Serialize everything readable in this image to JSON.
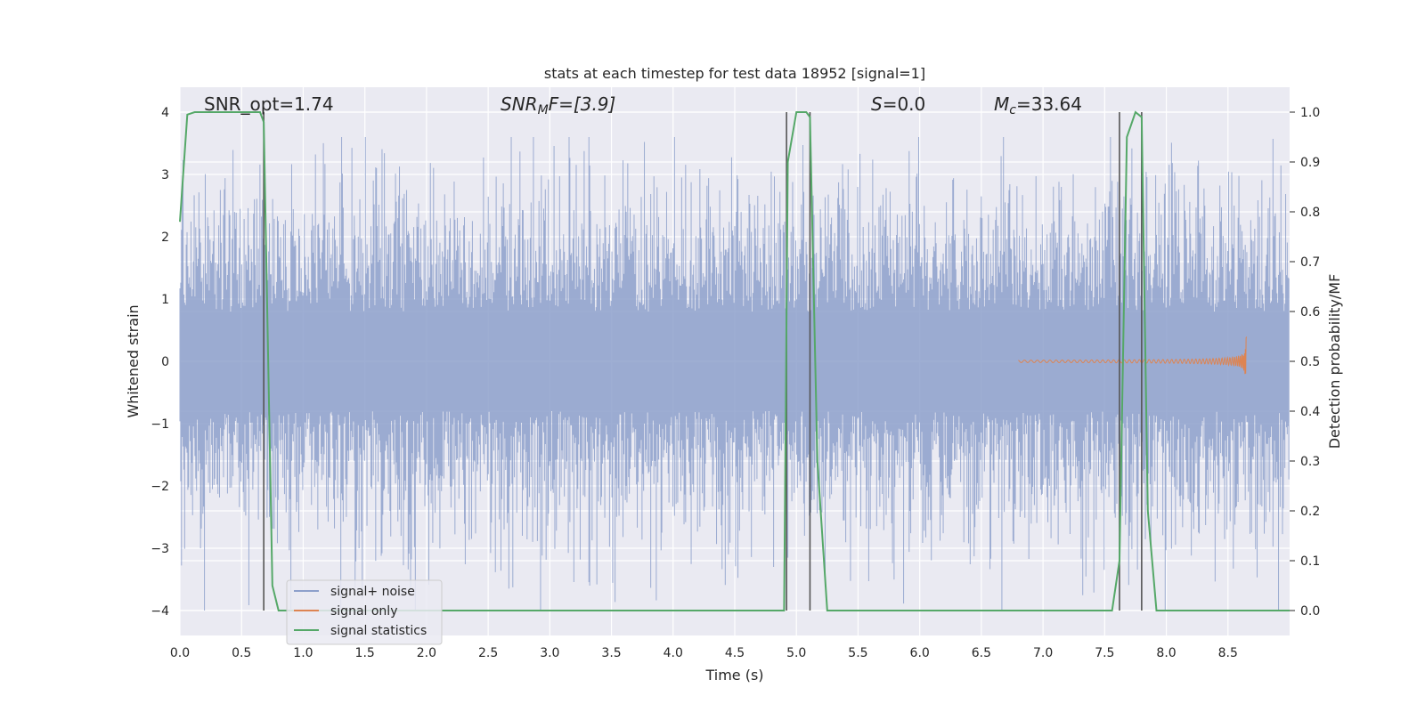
{
  "chart_data": {
    "type": "line",
    "title": "stats at each timestep for test data 18952 [signal=1]",
    "xlabel": "Time (s)",
    "ylabel": "Whitened strain",
    "ylabel_right": "Detection probability/MF",
    "xlim": [
      0.0,
      9.0
    ],
    "ylim": [
      -4.4,
      4.4
    ],
    "ylim_right": [
      -0.05,
      1.05
    ],
    "xticks": [
      "0.0",
      "0.5",
      "1.0",
      "1.5",
      "2.0",
      "2.5",
      "3.0",
      "3.5",
      "4.0",
      "4.5",
      "5.0",
      "5.5",
      "6.0",
      "6.5",
      "7.0",
      "7.5",
      "8.0",
      "8.5"
    ],
    "yticks": [
      "−4",
      "−3",
      "−2",
      "−1",
      "0",
      "1",
      "2",
      "3",
      "4"
    ],
    "yticks_right": [
      "0.0",
      "0.1",
      "0.2",
      "0.3",
      "0.4",
      "0.5",
      "0.6",
      "0.7",
      "0.8",
      "0.9",
      "1.0"
    ],
    "grid": true,
    "legend_position": "lower-left",
    "annotations": {
      "snr_opt": "SNR_opt=1.74",
      "snr_mf_prefix": "SNR",
      "snr_mf_sub": "M",
      "snr_mf_suffix": "F=[3.9]",
      "s_var": "S",
      "s_value": "=0.0",
      "mc_var": "M",
      "mc_sub": "c",
      "mc_value": "=33.64"
    },
    "vlines_x": [
      0.68,
      4.92,
      5.11,
      7.62,
      7.8
    ],
    "series": [
      {
        "name": "signal+ noise",
        "color": "#8da0cb",
        "description_range": [
          -4.0,
          3.6
        ]
      },
      {
        "name": "signal only",
        "color": "#dd8452",
        "chirp_peak_x": 8.65,
        "chirp_peak_amplitude": 0.45
      },
      {
        "name": "signal statistics",
        "color": "#55a868",
        "axis": "right",
        "x": [
          0.0,
          0.06,
          0.12,
          0.5,
          0.65,
          0.68,
          0.75,
          0.8,
          1.5,
          4.0,
          4.9,
          4.93,
          5.0,
          5.08,
          5.11,
          5.17,
          5.25,
          6.0,
          7.5,
          7.56,
          7.62,
          7.68,
          7.75,
          7.8,
          7.85,
          7.92,
          8.5,
          9.0
        ],
        "y": [
          0.78,
          0.995,
          1.0,
          1.0,
          1.0,
          0.98,
          0.05,
          0.0,
          0.0,
          0.0,
          0.0,
          0.9,
          1.0,
          1.0,
          0.99,
          0.3,
          0.0,
          0.0,
          0.0,
          0.0,
          0.1,
          0.95,
          1.0,
          0.99,
          0.2,
          0.0,
          0.0,
          0.0
        ]
      }
    ]
  }
}
